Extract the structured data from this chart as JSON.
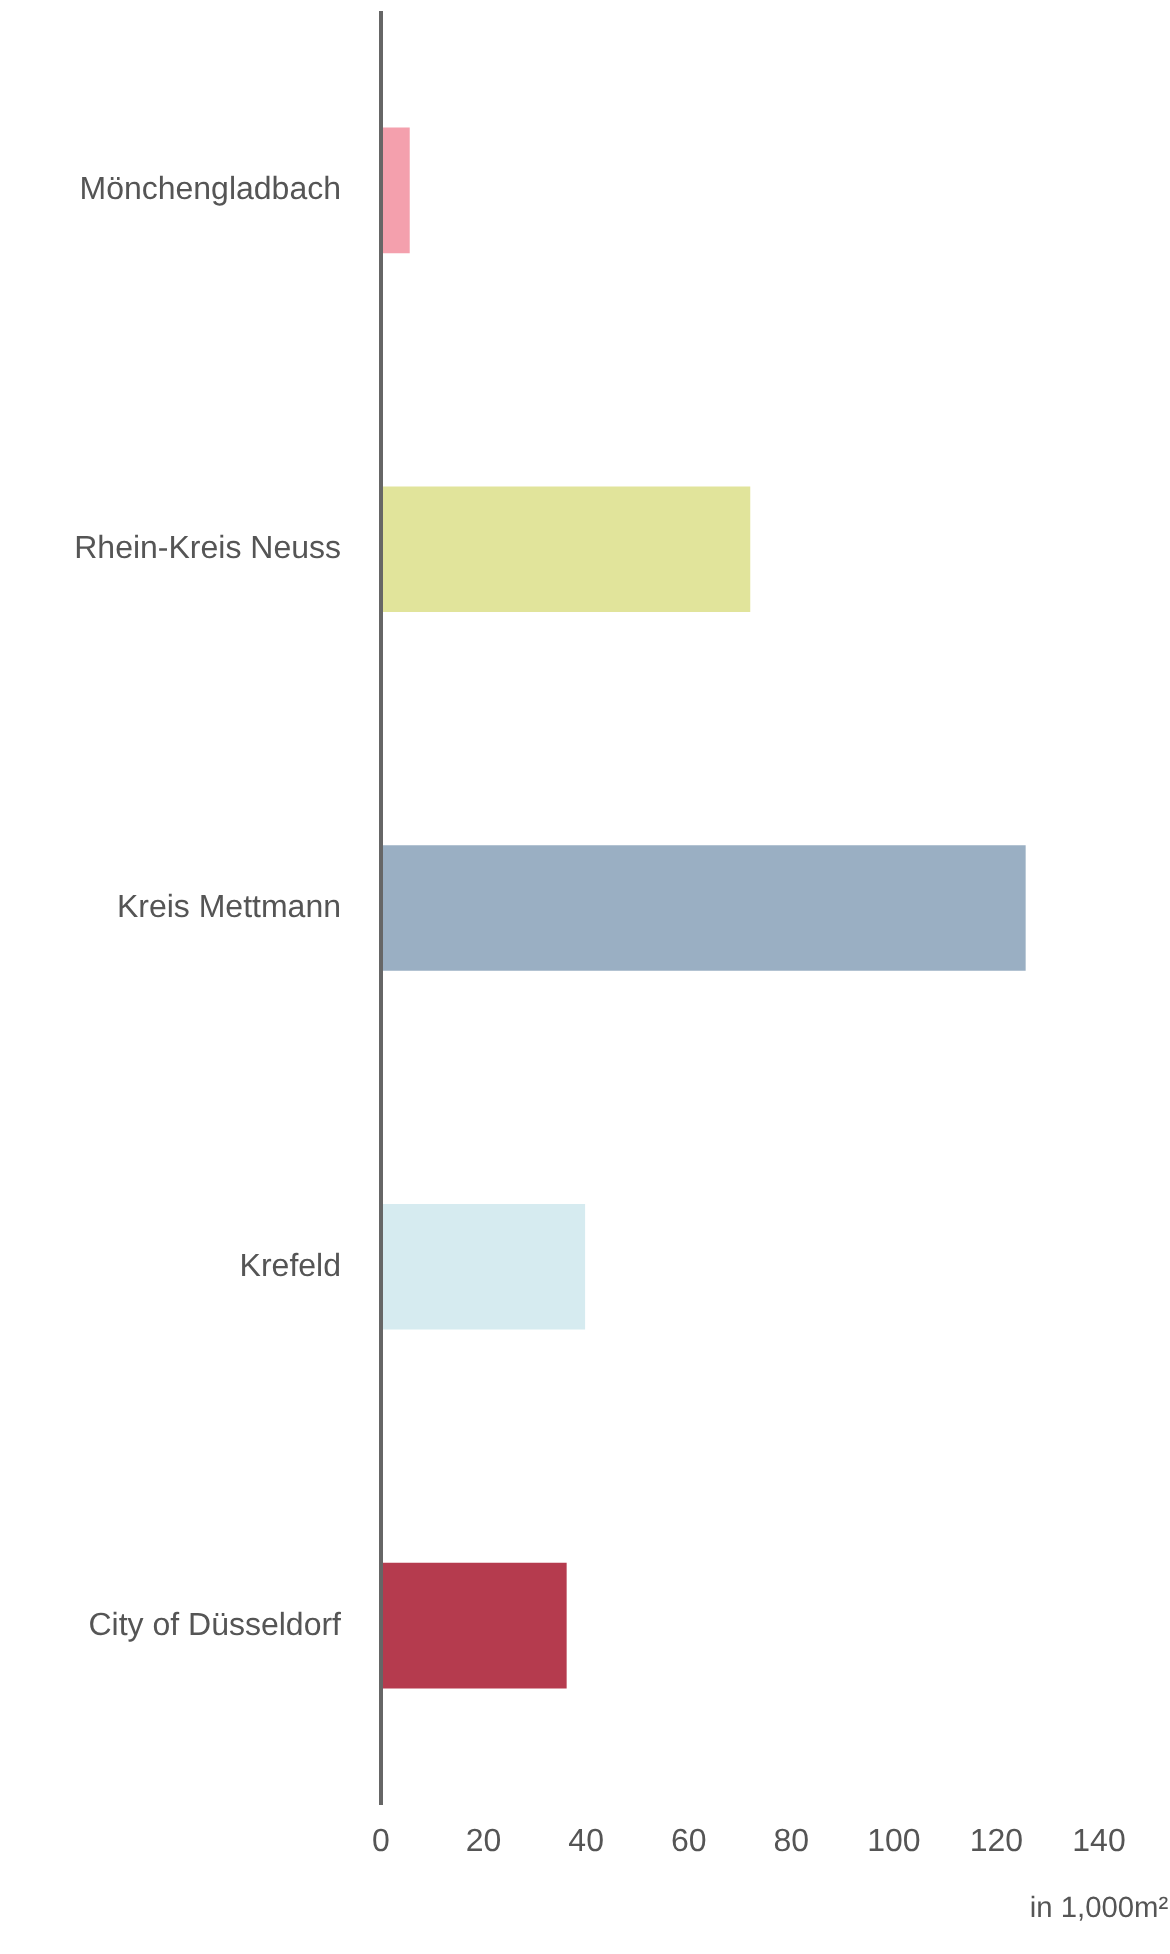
{
  "chart_data": {
    "type": "bar",
    "orientation": "horizontal",
    "xlabel": "in 1,000m²",
    "categories": [
      "Mönchengladbach",
      "Rhein-Kreis Neuss",
      "Kreis Mettmann",
      "Krefeld",
      "City of Düsseldorf"
    ],
    "values": [
      5.6,
      72,
      125.7,
      39.8,
      36.2
    ],
    "colors": [
      "#f4a0ad",
      "#e1e49b",
      "#9aafc3",
      "#d6ebf0",
      "#b53b4e"
    ],
    "xlim": [
      0,
      140
    ],
    "xticks": [
      0,
      20,
      40,
      60,
      80,
      100,
      120,
      140
    ],
    "grid": false
  }
}
